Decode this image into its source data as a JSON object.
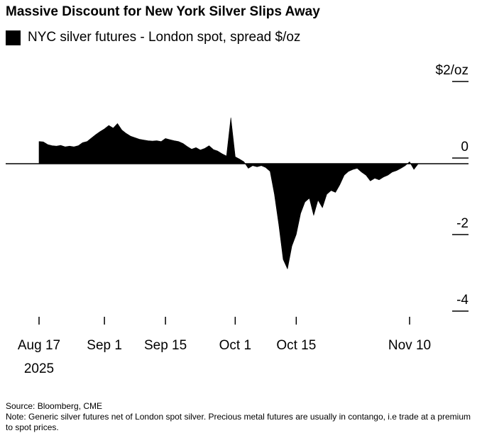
{
  "title": "Massive Discount for New York Silver Slips Away",
  "legend": {
    "label": "NYC silver futures - London spot, spread $/oz",
    "color": "#000000"
  },
  "source": "Source: Bloomberg, CME",
  "note": "Note: Generic silver futures net of London spot silver. Precious metal futures are usually in contango, i.e trade at a premium to spot prices.",
  "chart_data": {
    "type": "area",
    "title": "Massive Discount for New York Silver Slips Away",
    "subtitle": "NYC silver futures - London spot, spread $/oz",
    "y_unit_label": "$2/oz",
    "ylim": [
      -4,
      2
    ],
    "yticks": [
      {
        "value": 2,
        "label": "$2/oz"
      },
      {
        "value": 0,
        "label": "0"
      },
      {
        "value": -2,
        "label": "-2"
      },
      {
        "value": -4,
        "label": "-4"
      }
    ],
    "xlim": [
      "2025-08-17",
      "2025-11-17"
    ],
    "xticks": [
      {
        "date": "2025-08-17",
        "label": "Aug 17",
        "sublabel": "2025"
      },
      {
        "date": "2025-09-01",
        "label": "Sep 1"
      },
      {
        "date": "2025-09-15",
        "label": "Sep 15"
      },
      {
        "date": "2025-10-01",
        "label": "Oct 1"
      },
      {
        "date": "2025-10-15",
        "label": "Oct 15"
      },
      {
        "date": "2025-11-10",
        "label": "Nov 10"
      }
    ],
    "grid": false,
    "series": [
      {
        "name": "NYC silver futures - London spot, spread $/oz",
        "color": "#000000",
        "points": [
          [
            "2025-08-17",
            0.58
          ],
          [
            "2025-08-18",
            0.57
          ],
          [
            "2025-08-19",
            0.5
          ],
          [
            "2025-08-20",
            0.47
          ],
          [
            "2025-08-21",
            0.46
          ],
          [
            "2025-08-22",
            0.48
          ],
          [
            "2025-08-23",
            0.44
          ],
          [
            "2025-08-24",
            0.46
          ],
          [
            "2025-08-25",
            0.44
          ],
          [
            "2025-08-26",
            0.47
          ],
          [
            "2025-08-27",
            0.55
          ],
          [
            "2025-08-28",
            0.58
          ],
          [
            "2025-08-29",
            0.67
          ],
          [
            "2025-08-30",
            0.76
          ],
          [
            "2025-08-31",
            0.84
          ],
          [
            "2025-09-01",
            0.91
          ],
          [
            "2025-09-02",
            1.0
          ],
          [
            "2025-09-03",
            0.93
          ],
          [
            "2025-09-04",
            1.05
          ],
          [
            "2025-09-05",
            0.88
          ],
          [
            "2025-09-06",
            0.79
          ],
          [
            "2025-09-07",
            0.72
          ],
          [
            "2025-09-08",
            0.68
          ],
          [
            "2025-09-09",
            0.64
          ],
          [
            "2025-09-10",
            0.62
          ],
          [
            "2025-09-11",
            0.6
          ],
          [
            "2025-09-12",
            0.59
          ],
          [
            "2025-09-13",
            0.6
          ],
          [
            "2025-09-14",
            0.58
          ],
          [
            "2025-09-15",
            0.66
          ],
          [
            "2025-09-16",
            0.63
          ],
          [
            "2025-09-17",
            0.6
          ],
          [
            "2025-09-18",
            0.58
          ],
          [
            "2025-09-19",
            0.53
          ],
          [
            "2025-09-20",
            0.45
          ],
          [
            "2025-09-21",
            0.38
          ],
          [
            "2025-09-22",
            0.42
          ],
          [
            "2025-09-23",
            0.36
          ],
          [
            "2025-09-24",
            0.4
          ],
          [
            "2025-09-25",
            0.47
          ],
          [
            "2025-09-26",
            0.37
          ],
          [
            "2025-09-27",
            0.33
          ],
          [
            "2025-09-28",
            0.26
          ],
          [
            "2025-09-29",
            0.2
          ],
          [
            "2025-09-30",
            1.2
          ],
          [
            "2025-10-01",
            0.18
          ],
          [
            "2025-10-02",
            0.12
          ],
          [
            "2025-10-03",
            0.05
          ],
          [
            "2025-10-04",
            -0.12
          ],
          [
            "2025-10-05",
            -0.05
          ],
          [
            "2025-10-06",
            -0.08
          ],
          [
            "2025-10-07",
            -0.05
          ],
          [
            "2025-10-08",
            -0.1
          ],
          [
            "2025-10-09",
            -0.2
          ],
          [
            "2025-10-10",
            -0.8
          ],
          [
            "2025-10-11",
            -1.6
          ],
          [
            "2025-10-12",
            -2.5
          ],
          [
            "2025-10-13",
            -2.75
          ],
          [
            "2025-10-14",
            -2.15
          ],
          [
            "2025-10-15",
            -1.85
          ],
          [
            "2025-10-16",
            -1.3
          ],
          [
            "2025-10-17",
            -1.0
          ],
          [
            "2025-10-18",
            -0.9
          ],
          [
            "2025-10-19",
            -1.35
          ],
          [
            "2025-10-20",
            -0.95
          ],
          [
            "2025-10-21",
            -1.15
          ],
          [
            "2025-10-22",
            -0.8
          ],
          [
            "2025-10-23",
            -0.7
          ],
          [
            "2025-10-24",
            -0.75
          ],
          [
            "2025-10-25",
            -0.55
          ],
          [
            "2025-10-26",
            -0.3
          ],
          [
            "2025-10-27",
            -0.2
          ],
          [
            "2025-10-28",
            -0.15
          ],
          [
            "2025-10-29",
            -0.12
          ],
          [
            "2025-10-30",
            -0.22
          ],
          [
            "2025-10-31",
            -0.3
          ],
          [
            "2025-11-01",
            -0.45
          ],
          [
            "2025-11-02",
            -0.38
          ],
          [
            "2025-11-03",
            -0.42
          ],
          [
            "2025-11-04",
            -0.35
          ],
          [
            "2025-11-05",
            -0.3
          ],
          [
            "2025-11-06",
            -0.22
          ],
          [
            "2025-11-07",
            -0.18
          ],
          [
            "2025-11-08",
            -0.12
          ],
          [
            "2025-11-09",
            -0.05
          ],
          [
            "2025-11-10",
            0.05
          ],
          [
            "2025-11-11",
            -0.15
          ],
          [
            "2025-11-12",
            0.0
          ]
        ]
      }
    ]
  }
}
